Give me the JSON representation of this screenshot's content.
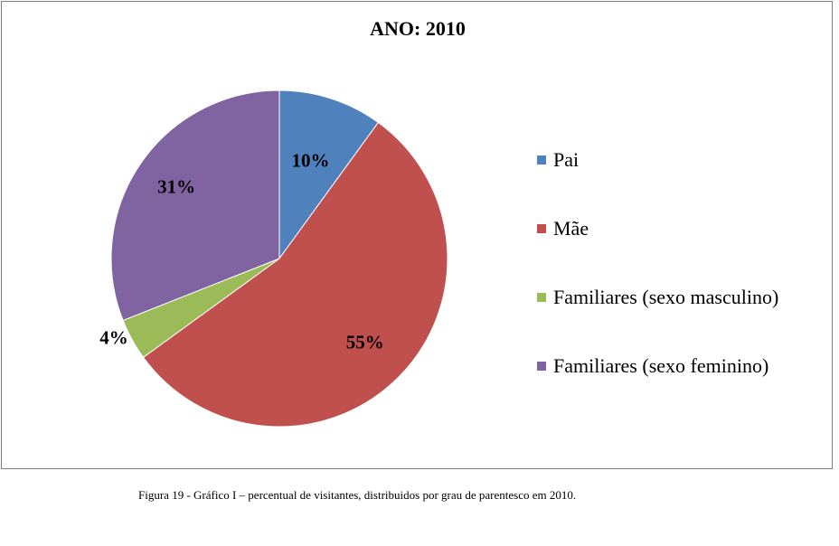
{
  "chart_data": {
    "type": "pie",
    "title": "ANO: 2010",
    "categories": [
      "Pai",
      "Mãe",
      "Familiares (sexo masculino)",
      "Familiares (sexo feminino)"
    ],
    "values": [
      10,
      55,
      4,
      31
    ],
    "labels": [
      "10%",
      "55%",
      "4%",
      "31%"
    ],
    "colors": [
      "#4f81bd",
      "#c0504d",
      "#9bbb59",
      "#8064a2"
    ],
    "legend_position": "right"
  },
  "caption": "Figura 19 - Gráfico I – percentual de visitantes, distribuidos por grau de parentesco em 2010."
}
